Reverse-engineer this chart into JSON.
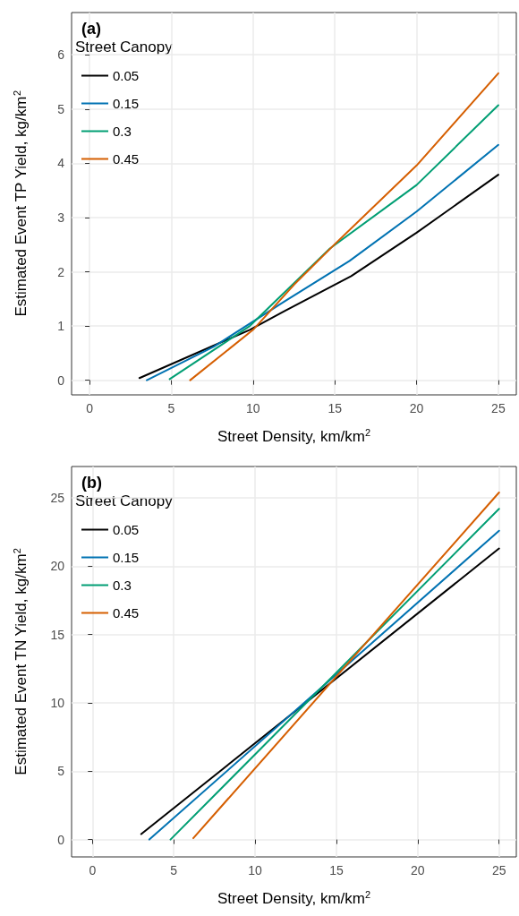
{
  "chart_data": [
    {
      "type": "line",
      "title": "(a)",
      "legend_title": "Street Canopy",
      "xlabel": "Street Density, km/km$^{2}$",
      "ylabel": "Estimated Event TP Yield, kg/km$^{2}$",
      "xlim": [
        -1.1,
        26.1
      ],
      "ylim": [
        -0.27,
        6.78
      ],
      "xticks": [
        0,
        5,
        10,
        15,
        20,
        25
      ],
      "yticks": [
        0,
        1,
        2,
        3,
        4,
        5,
        6
      ],
      "grid": true,
      "legend": "top left",
      "marker": "none",
      "line_style": "solid",
      "series": [
        {
          "name": "0.05",
          "color": "#000000",
          "x": [
            3.05,
            9.8,
            11.9,
            16,
            20,
            25
          ],
          "values": [
            0.04,
            0.93,
            1.27,
            1.92,
            2.72,
            3.79
          ]
        },
        {
          "name": "0.15",
          "color": "#0072b2",
          "x": [
            3.5,
            7.6,
            11.9,
            15.9,
            20,
            25
          ],
          "values": [
            0,
            0.62,
            1.45,
            2.2,
            3.11,
            4.34
          ]
        },
        {
          "name": "0.3",
          "color": "#009e73",
          "x": [
            4.9,
            9.8,
            14.7,
            20,
            25
          ],
          "values": [
            0.02,
            1.0,
            2.43,
            3.6,
            5.07
          ]
        },
        {
          "name": "0.45",
          "color": "#d55e00",
          "x": [
            6.15,
            10,
            12.5,
            15,
            20,
            25
          ],
          "values": [
            0,
            0.93,
            1.76,
            2.51,
            3.96,
            5.66
          ]
        }
      ]
    },
    {
      "type": "line",
      "title": "(b)",
      "legend_title": "Street Canopy",
      "xlabel": "Street Density, km/km$^{2}$",
      "ylabel": "Estimated Event TN Yield, kg/km$^{2}$",
      "xlim": [
        -1.28,
        26.06
      ],
      "ylim": [
        -1.27,
        27.3
      ],
      "xticks": [
        0,
        5,
        10,
        15,
        20,
        25
      ],
      "yticks": [
        0,
        5,
        10,
        15,
        20,
        25
      ],
      "grid": true,
      "legend": "top left",
      "marker": "none",
      "line_style": "solid",
      "series": [
        {
          "name": "0.05",
          "color": "#000000",
          "x": [
            3.0,
            25
          ],
          "values": [
            0.4,
            21.3
          ]
        },
        {
          "name": "0.15",
          "color": "#0072b2",
          "x": [
            3.5,
            25
          ],
          "values": [
            0,
            22.6
          ]
        },
        {
          "name": "0.3",
          "color": "#009e73",
          "x": [
            4.8,
            25
          ],
          "values": [
            0,
            24.2
          ]
        },
        {
          "name": "0.45",
          "color": "#d55e00",
          "x": [
            6.2,
            25
          ],
          "values": [
            0.1,
            25.4
          ]
        }
      ]
    }
  ]
}
